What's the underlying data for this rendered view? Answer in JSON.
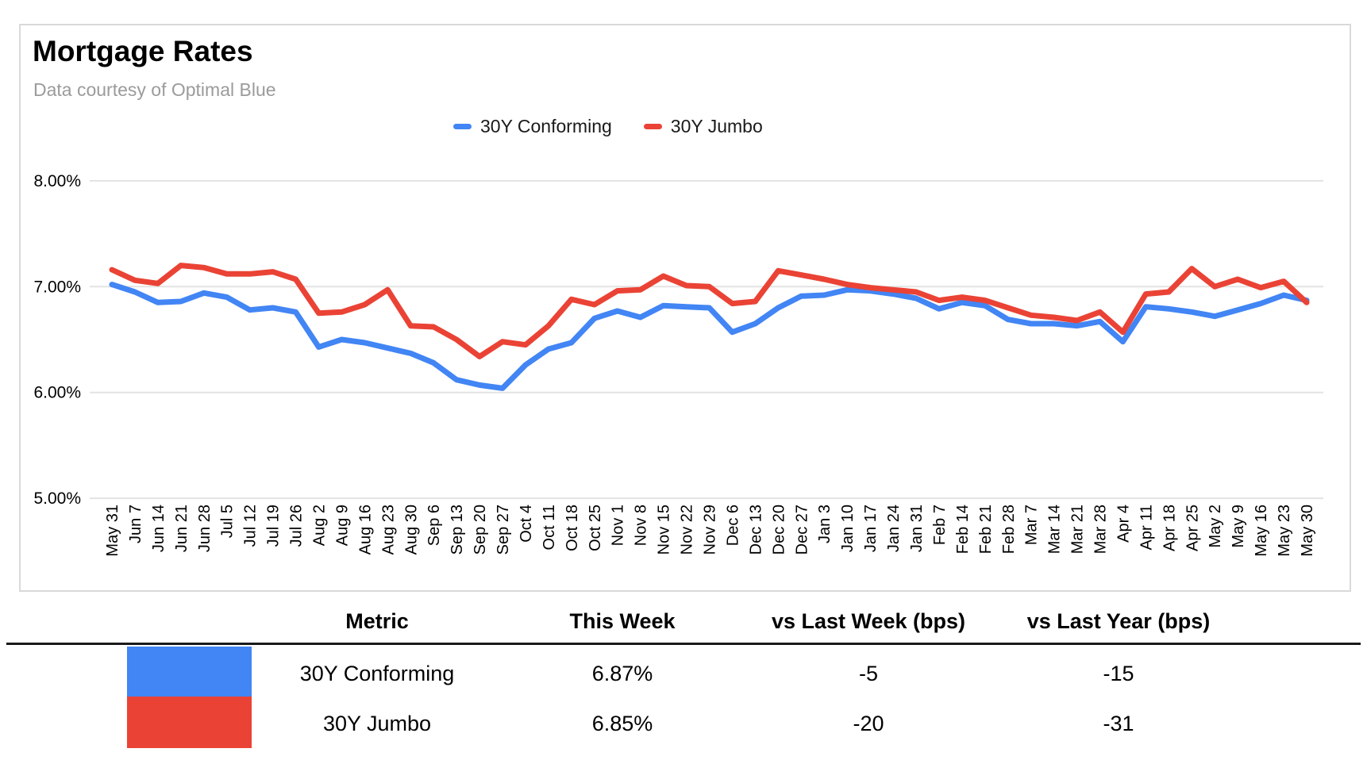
{
  "header": {
    "title": "Mortgage Rates",
    "subtitle": "Data courtesy of Optimal Blue"
  },
  "colors": {
    "conforming_blue": "#4285f4",
    "jumbo_red": "#ea4335",
    "grid_gray": "#e3e3e3",
    "table_rule_black": "#1a1a1a",
    "subtitle_gray": "#9b9b9b"
  },
  "chart_data": {
    "type": "line",
    "title": "Mortgage Rates",
    "subtitle": "Data courtesy of Optimal Blue",
    "legend_position": "top-center",
    "grid": true,
    "ylim": [
      5.0,
      8.0
    ],
    "yticks": [
      {
        "label": "8.00%",
        "value": 8.0
      },
      {
        "label": "7.00%",
        "value": 7.0
      },
      {
        "label": "6.00%",
        "value": 6.0
      },
      {
        "label": "5.00%",
        "value": 5.0
      }
    ],
    "x": [
      "May 31",
      "Jun 7",
      "Jun 14",
      "Jun 21",
      "Jun 28",
      "Jul 5",
      "Jul 12",
      "Jul 19",
      "Jul 26",
      "Aug 2",
      "Aug 9",
      "Aug 16",
      "Aug 23",
      "Aug 30",
      "Sep 6",
      "Sep 13",
      "Sep 20",
      "Sep 27",
      "Oct 4",
      "Oct 11",
      "Oct 18",
      "Oct 25",
      "Nov 1",
      "Nov 8",
      "Nov 15",
      "Nov 22",
      "Nov 29",
      "Dec 6",
      "Dec 13",
      "Dec 20",
      "Dec 27",
      "Jan 3",
      "Jan 10",
      "Jan 17",
      "Jan 24",
      "Jan 31",
      "Feb 7",
      "Feb 14",
      "Feb 21",
      "Feb 28",
      "Mar 7",
      "Mar 14",
      "Mar 21",
      "Mar 28",
      "Apr 4",
      "Apr 11",
      "Apr 18",
      "Apr 25",
      "May 2",
      "May 9",
      "May 16",
      "May 23",
      "May 30"
    ],
    "series": [
      {
        "name": "30Y Conforming",
        "color": "#4285f4",
        "values": [
          7.02,
          6.95,
          6.85,
          6.86,
          6.94,
          6.9,
          6.78,
          6.8,
          6.76,
          6.43,
          6.5,
          6.47,
          6.42,
          6.37,
          6.28,
          6.12,
          6.07,
          6.04,
          6.26,
          6.41,
          6.47,
          6.7,
          6.77,
          6.71,
          6.82,
          6.81,
          6.8,
          6.57,
          6.65,
          6.8,
          6.91,
          6.92,
          6.97,
          6.96,
          6.93,
          6.89,
          6.79,
          6.85,
          6.82,
          6.69,
          6.65,
          6.65,
          6.63,
          6.67,
          6.48,
          6.81,
          6.79,
          6.76,
          6.72,
          6.78,
          6.84,
          6.92,
          6.87
        ]
      },
      {
        "name": "30Y Jumbo",
        "color": "#ea4335",
        "values": [
          7.16,
          7.06,
          7.03,
          7.2,
          7.18,
          7.12,
          7.12,
          7.14,
          7.07,
          6.75,
          6.76,
          6.83,
          6.97,
          6.63,
          6.62,
          6.5,
          6.34,
          6.48,
          6.45,
          6.63,
          6.88,
          6.83,
          6.96,
          6.97,
          7.1,
          7.01,
          7.0,
          6.84,
          6.86,
          7.15,
          7.11,
          7.07,
          7.02,
          6.99,
          6.97,
          6.95,
          6.87,
          6.9,
          6.87,
          6.8,
          6.73,
          6.71,
          6.68,
          6.76,
          6.57,
          6.93,
          6.95,
          7.17,
          7.0,
          7.07,
          6.99,
          7.05,
          6.85
        ]
      }
    ]
  },
  "table": {
    "headers": [
      "Metric",
      "This Week",
      "vs Last Week (bps)",
      "vs Last Year (bps)"
    ],
    "rows": [
      {
        "swatch_color": "#4285f4",
        "metric": "30Y Conforming",
        "this_week": "6.87%",
        "vs_last_week": "-5",
        "vs_last_year": "-15"
      },
      {
        "swatch_color": "#ea4335",
        "metric": "30Y Jumbo",
        "this_week": "6.85%",
        "vs_last_week": "-20",
        "vs_last_year": "-31"
      }
    ]
  }
}
